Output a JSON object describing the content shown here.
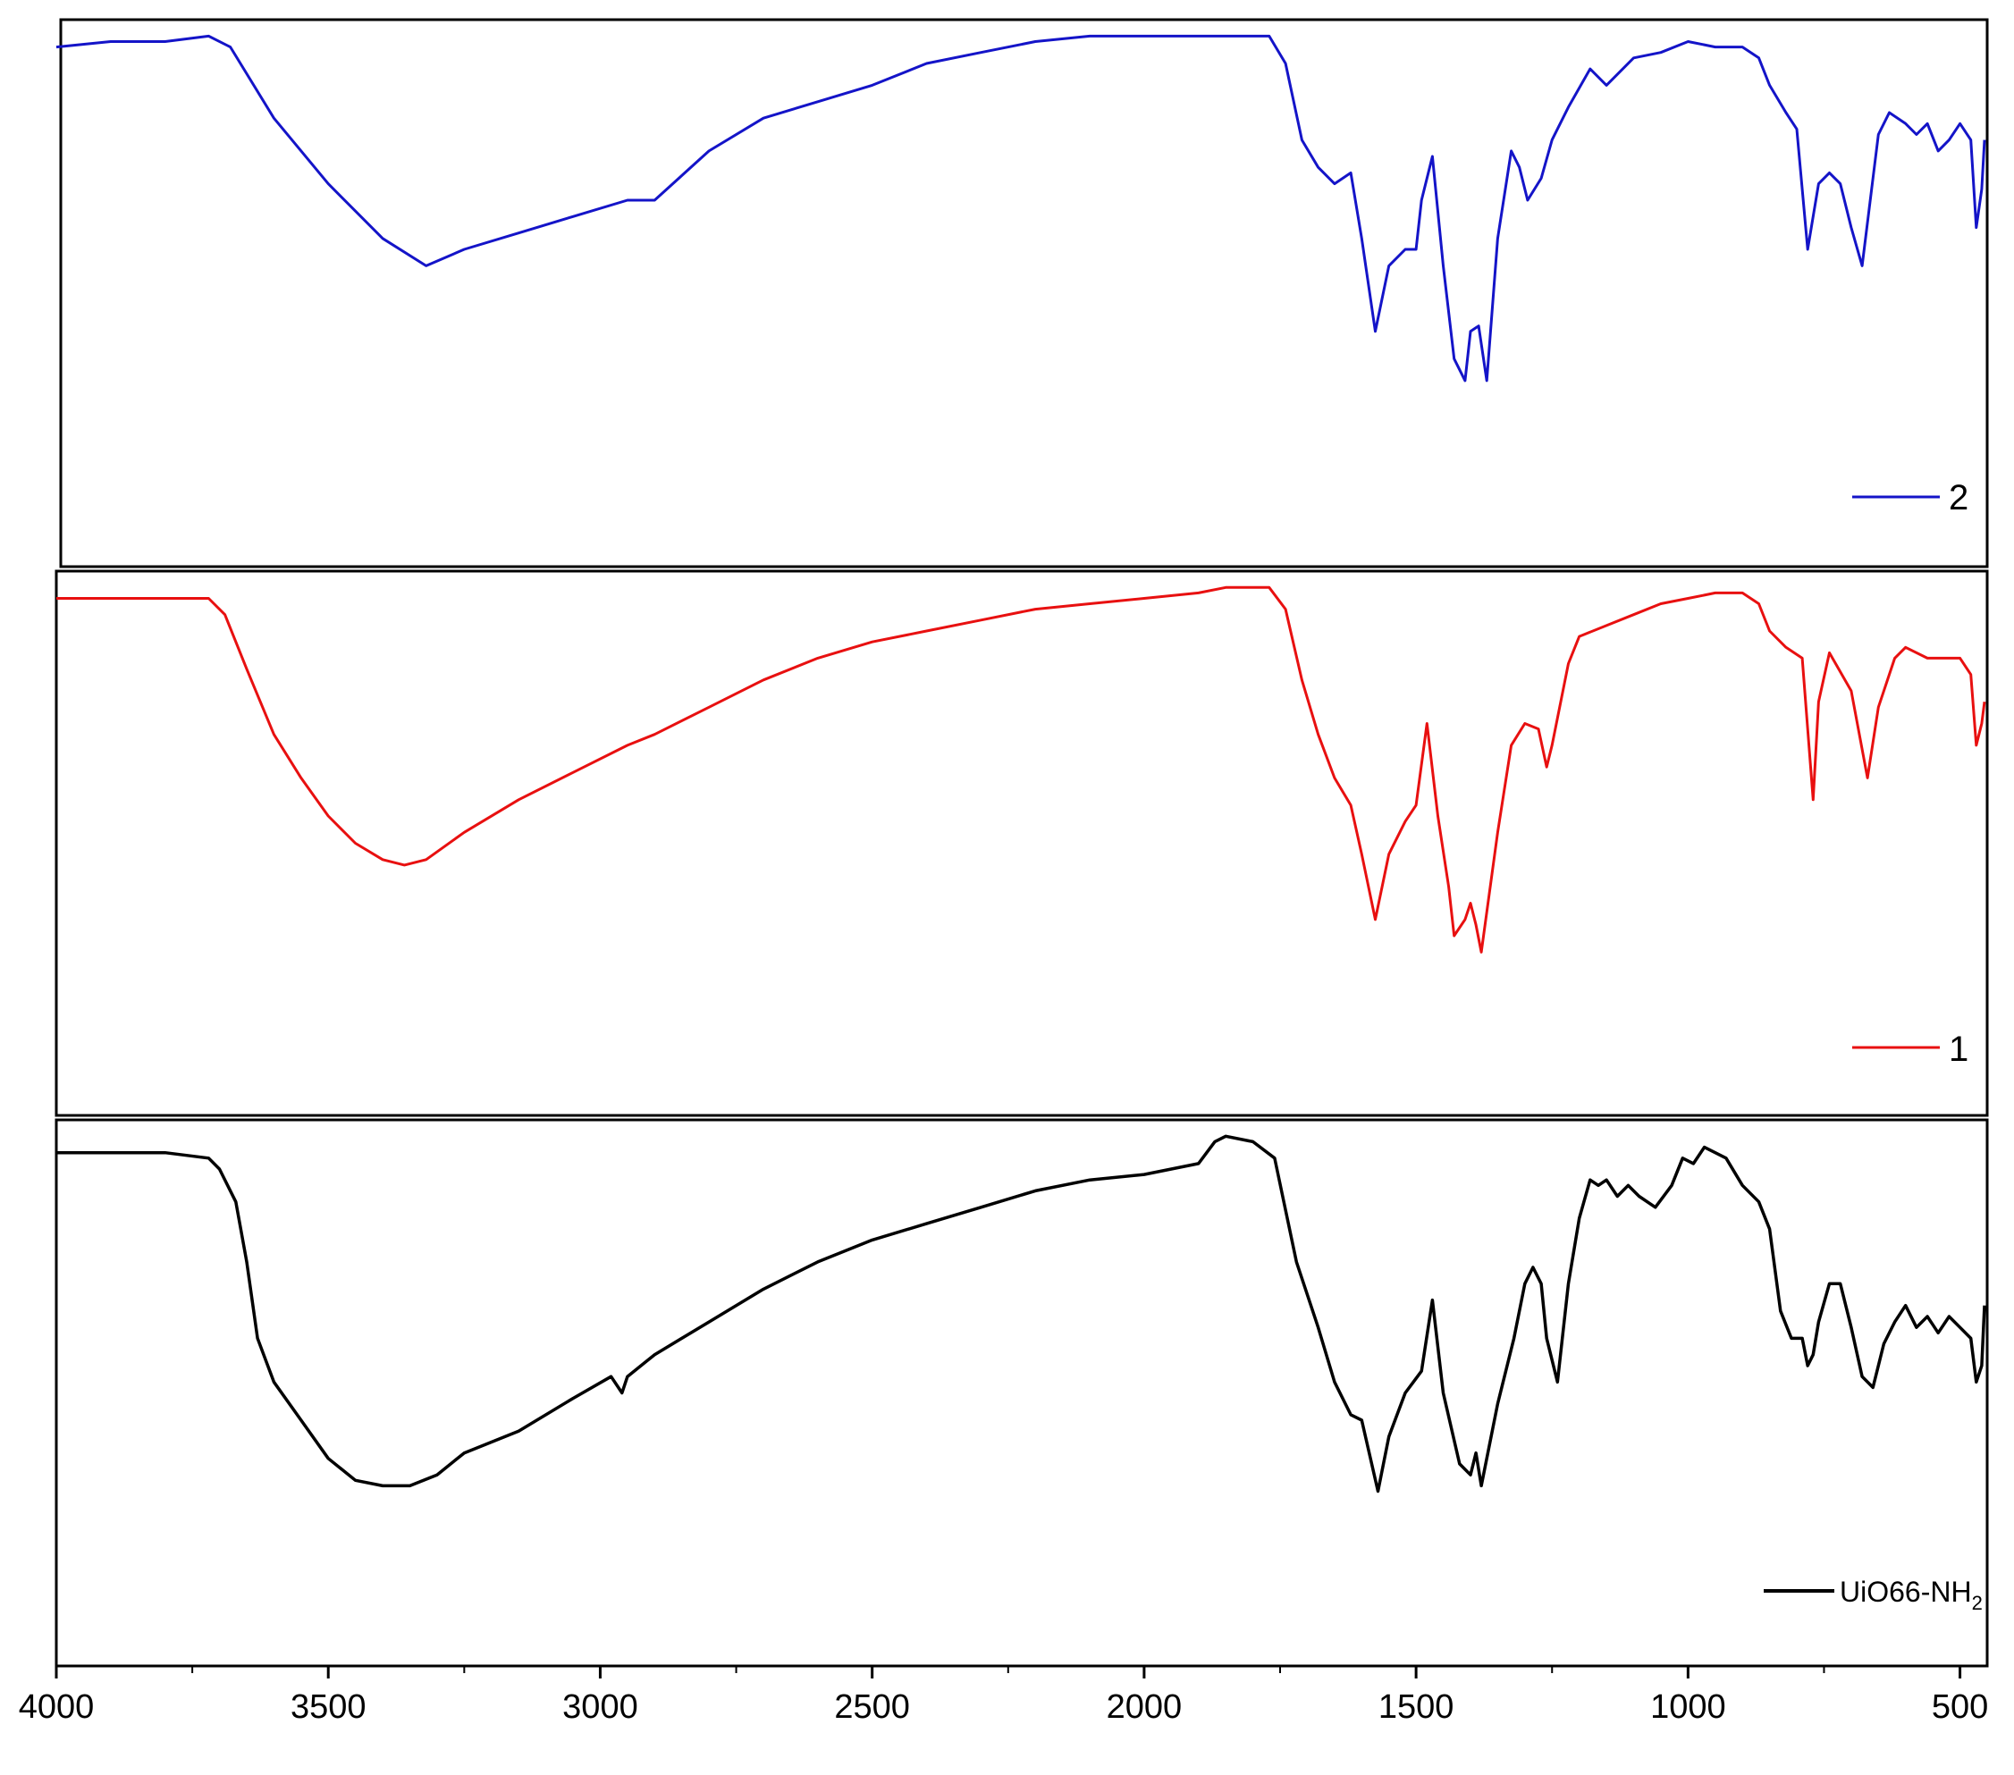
{
  "chart_data": {
    "type": "line",
    "x_axis": {
      "reversed": true,
      "xlim": [
        4000,
        450
      ],
      "ticks": [
        4000,
        3500,
        3000,
        2500,
        2000,
        1500,
        1000,
        500
      ],
      "tick_labels": [
        "4000",
        "3500",
        "3000",
        "2500",
        "2000",
        "1500",
        "1000",
        "500"
      ]
    },
    "panels": [
      {
        "legend": {
          "label": "2",
          "placement": "bottom-right"
        },
        "series": {
          "name": "2",
          "color": "#1414c8",
          "x": [
            4000,
            3900,
            3800,
            3720,
            3680,
            3600,
            3500,
            3400,
            3320,
            3250,
            3150,
            3050,
            2950,
            2900,
            2800,
            2700,
            2600,
            2500,
            2400,
            2300,
            2200,
            2100,
            2000,
            1900,
            1800,
            1770,
            1740,
            1710,
            1680,
            1650,
            1620,
            1600,
            1575,
            1550,
            1520,
            1500,
            1490,
            1470,
            1450,
            1430,
            1410,
            1400,
            1385,
            1370,
            1350,
            1325,
            1310,
            1295,
            1270,
            1250,
            1220,
            1180,
            1150,
            1100,
            1050,
            1000,
            950,
            900,
            870,
            850,
            820,
            800,
            780,
            760,
            740,
            720,
            700,
            680,
            650,
            630,
            600,
            580,
            560,
            540,
            520,
            500,
            480,
            470,
            460,
            455
          ],
          "y": [
            0.95,
            0.96,
            0.96,
            0.97,
            0.95,
            0.82,
            0.7,
            0.6,
            0.55,
            0.58,
            0.61,
            0.64,
            0.67,
            0.67,
            0.76,
            0.82,
            0.85,
            0.88,
            0.92,
            0.94,
            0.96,
            0.97,
            0.97,
            0.97,
            0.97,
            0.97,
            0.92,
            0.78,
            0.73,
            0.7,
            0.72,
            0.6,
            0.43,
            0.55,
            0.58,
            0.58,
            0.67,
            0.75,
            0.55,
            0.38,
            0.34,
            0.43,
            0.44,
            0.34,
            0.6,
            0.76,
            0.73,
            0.67,
            0.71,
            0.78,
            0.84,
            0.91,
            0.88,
            0.93,
            0.94,
            0.96,
            0.95,
            0.95,
            0.93,
            0.88,
            0.83,
            0.8,
            0.58,
            0.7,
            0.72,
            0.7,
            0.62,
            0.55,
            0.79,
            0.83,
            0.81,
            0.79,
            0.81,
            0.76,
            0.78,
            0.81,
            0.78,
            0.62,
            0.69,
            0.78
          ]
        }
      },
      {
        "legend": {
          "label": "1",
          "placement": "bottom-right"
        },
        "series": {
          "name": "1",
          "color": "#e81010",
          "x": [
            4000,
            3900,
            3800,
            3720,
            3690,
            3650,
            3600,
            3550,
            3500,
            3450,
            3400,
            3360,
            3320,
            3250,
            3150,
            3050,
            2950,
            2900,
            2800,
            2700,
            2600,
            2500,
            2400,
            2300,
            2200,
            2100,
            2000,
            1900,
            1850,
            1800,
            1770,
            1740,
            1710,
            1680,
            1650,
            1620,
            1600,
            1575,
            1550,
            1520,
            1500,
            1480,
            1460,
            1440,
            1430,
            1410,
            1400,
            1390,
            1380,
            1350,
            1325,
            1300,
            1275,
            1260,
            1250,
            1220,
            1200,
            1150,
            1100,
            1050,
            1000,
            950,
            900,
            870,
            850,
            820,
            790,
            770,
            760,
            740,
            700,
            670,
            650,
            620,
            600,
            560,
            530,
            500,
            480,
            470,
            460,
            455
          ],
          "y": [
            0.95,
            0.95,
            0.95,
            0.95,
            0.92,
            0.82,
            0.7,
            0.62,
            0.55,
            0.5,
            0.47,
            0.46,
            0.47,
            0.52,
            0.58,
            0.63,
            0.68,
            0.7,
            0.75,
            0.8,
            0.84,
            0.87,
            0.89,
            0.91,
            0.93,
            0.94,
            0.95,
            0.96,
            0.97,
            0.97,
            0.97,
            0.93,
            0.8,
            0.7,
            0.62,
            0.57,
            0.48,
            0.36,
            0.48,
            0.54,
            0.57,
            0.72,
            0.55,
            0.42,
            0.33,
            0.36,
            0.39,
            0.35,
            0.3,
            0.52,
            0.68,
            0.72,
            0.71,
            0.64,
            0.68,
            0.83,
            0.88,
            0.9,
            0.92,
            0.94,
            0.95,
            0.96,
            0.96,
            0.94,
            0.89,
            0.86,
            0.84,
            0.58,
            0.76,
            0.85,
            0.78,
            0.62,
            0.75,
            0.84,
            0.86,
            0.84,
            0.84,
            0.84,
            0.81,
            0.68,
            0.72,
            0.76
          ]
        }
      },
      {
        "legend": {
          "label": "UiO66-NH",
          "label_subscript": "2",
          "placement": "bottom-right"
        },
        "series": {
          "name": "UiO66-NH2",
          "color": "#000000",
          "x": [
            4000,
            3900,
            3800,
            3720,
            3700,
            3670,
            3650,
            3630,
            3600,
            3550,
            3500,
            3450,
            3400,
            3350,
            3300,
            3250,
            3150,
            3050,
            2980,
            2960,
            2950,
            2900,
            2800,
            2700,
            2600,
            2500,
            2400,
            2300,
            2200,
            2100,
            2000,
            1900,
            1870,
            1850,
            1800,
            1760,
            1720,
            1680,
            1650,
            1620,
            1600,
            1570,
            1550,
            1520,
            1505,
            1490,
            1470,
            1450,
            1420,
            1400,
            1390,
            1380,
            1350,
            1320,
            1300,
            1285,
            1270,
            1260,
            1240,
            1220,
            1200,
            1180,
            1165,
            1150,
            1130,
            1110,
            1090,
            1060,
            1030,
            1010,
            990,
            970,
            950,
            930,
            900,
            870,
            850,
            830,
            810,
            790,
            780,
            770,
            760,
            740,
            720,
            700,
            680,
            660,
            640,
            620,
            600,
            580,
            560,
            540,
            520,
            500,
            480,
            470,
            460,
            455
          ],
          "y": [
            0.94,
            0.94,
            0.94,
            0.93,
            0.91,
            0.85,
            0.74,
            0.6,
            0.52,
            0.45,
            0.38,
            0.34,
            0.33,
            0.33,
            0.35,
            0.39,
            0.43,
            0.49,
            0.53,
            0.5,
            0.53,
            0.57,
            0.63,
            0.69,
            0.74,
            0.78,
            0.81,
            0.84,
            0.87,
            0.89,
            0.9,
            0.92,
            0.96,
            0.97,
            0.96,
            0.93,
            0.74,
            0.62,
            0.52,
            0.46,
            0.45,
            0.32,
            0.42,
            0.5,
            0.52,
            0.54,
            0.67,
            0.5,
            0.37,
            0.35,
            0.39,
            0.33,
            0.48,
            0.6,
            0.7,
            0.73,
            0.7,
            0.6,
            0.52,
            0.7,
            0.82,
            0.89,
            0.88,
            0.89,
            0.86,
            0.88,
            0.86,
            0.84,
            0.88,
            0.93,
            0.92,
            0.95,
            0.94,
            0.93,
            0.88,
            0.85,
            0.8,
            0.65,
            0.6,
            0.6,
            0.55,
            0.57,
            0.63,
            0.7,
            0.7,
            0.62,
            0.53,
            0.51,
            0.59,
            0.63,
            0.66,
            0.62,
            0.64,
            0.61,
            0.64,
            0.62,
            0.6,
            0.52,
            0.55,
            0.66
          ]
        }
      }
    ]
  }
}
